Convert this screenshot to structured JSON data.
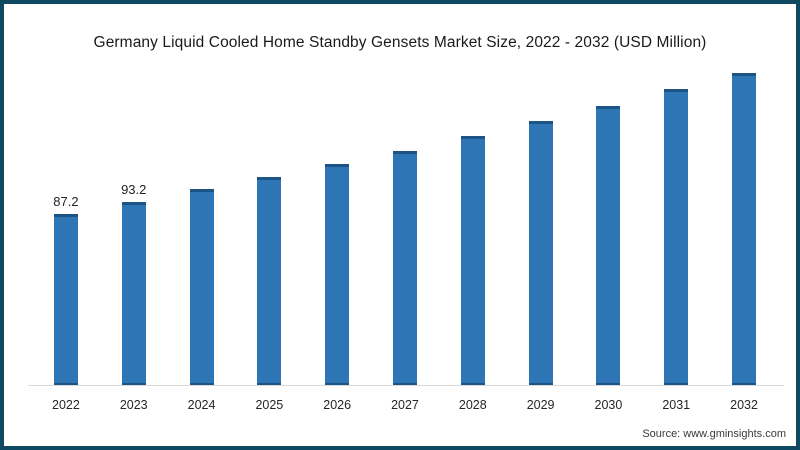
{
  "chart_data": {
    "type": "bar",
    "title": "Germany Liquid Cooled Home Standby Gensets Market Size, 2022 - 2032 (USD Million)",
    "categories": [
      "2022",
      "2023",
      "2024",
      "2025",
      "2026",
      "2027",
      "2028",
      "2029",
      "2030",
      "2031",
      "2032"
    ],
    "values": [
      87.2,
      93.2,
      99.8,
      106.1,
      112.4,
      119.4,
      126.6,
      134.3,
      141.9,
      150.5,
      158.7
    ],
    "data_labels": {
      "2022": "87.2",
      "2023": "93.2"
    },
    "xlabel": "",
    "ylabel": "",
    "ylim": [
      0,
      165
    ],
    "grid": false,
    "legend": false,
    "y_axis_shown": false
  },
  "footer": {
    "source_label": "Source: www.gminsights.com"
  },
  "colors": {
    "bar_fill": "#2e75b5",
    "bar_edge": "#1d5486",
    "frame_border": "#0d4961",
    "axis_line": "#d9d9d9",
    "title_text": "#1a1a1a",
    "tick_text": "#262626",
    "source_text": "#3a3a3a"
  }
}
